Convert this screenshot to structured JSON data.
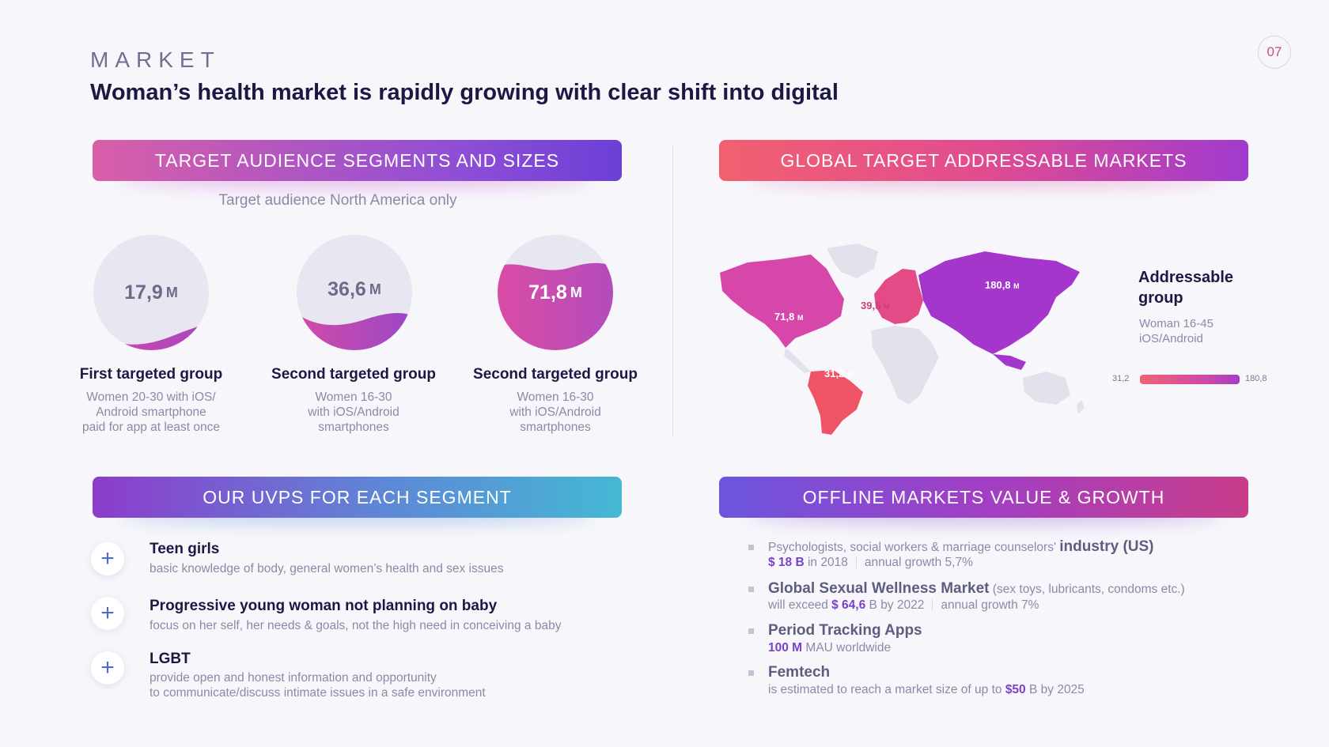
{
  "header": {
    "section_label": "MARKET",
    "title": "Woman’s health market is rapidly growing with clear shift into digital",
    "page_number": "07"
  },
  "target_audience": {
    "banner": "TARGET AUDIENCE SEGMENTS AND SIZES",
    "subtitle": "Target audience North America only",
    "segments": [
      {
        "value": "17,9",
        "unit": "M",
        "fill_fraction": 0.12,
        "title": "First targeted group",
        "desc": [
          "Women 20-30 with iOS/",
          "Android smartphone",
          "paid for app at least once"
        ]
      },
      {
        "value": "36,6",
        "unit": "M",
        "fill_fraction": 0.3,
        "title": "Second targeted group",
        "desc": [
          "Women 16-30",
          "with iOS/Android",
          "smartphones"
        ]
      },
      {
        "value": "71,8",
        "unit": "M",
        "fill_fraction": 0.75,
        "title": "Second targeted group",
        "desc": [
          "Women 16-30",
          "with iOS/Android",
          "smartphones"
        ]
      }
    ]
  },
  "global_markets": {
    "banner": "GLOBAL TARGET ADDRESSABLE MARKETS",
    "regions": [
      {
        "name": "north-america",
        "value": "71,8",
        "unit": "M"
      },
      {
        "name": "europe",
        "value": "39,5",
        "unit": "M"
      },
      {
        "name": "asia",
        "value": "180,8",
        "unit": "M"
      },
      {
        "name": "south-america",
        "value": "31,2",
        "unit": "M"
      }
    ],
    "legend": {
      "title_line1": "Addressable",
      "title_line2": "group",
      "sub_line1": "Woman 16-45",
      "sub_line2": "iOS/Android",
      "min": "31,2",
      "max": "180,8"
    }
  },
  "uvps": {
    "banner": "OUR UVPS FOR EACH SEGMENT",
    "items": [
      {
        "title": "Teen girls",
        "desc": [
          "basic knowledge of body, general women’s health and sex issues"
        ]
      },
      {
        "title": "Progressive young woman not planning on baby",
        "desc": [
          "focus on her self, her needs & goals, not the high need in conceiving a baby"
        ]
      },
      {
        "title": "LGBT",
        "desc": [
          "provide open and honest information and opportunity",
          "to communicate/discuss intimate issues in a safe environment"
        ]
      }
    ]
  },
  "offline": {
    "banner": "OFFLINE MARKETS VALUE & GROWTH",
    "items": [
      {
        "l1_pre": "Psychologists, social workers & marriage counselors'",
        "l1_strong": "industry (US)",
        "l1_post": "",
        "l2_acc": "$ 18 B",
        "l2_text": "in 2018",
        "l2_growth": "annual growth 5,7%"
      },
      {
        "l1_pre": "",
        "l1_strong": "Global Sexual Wellness Market",
        "l1_post": "(sex toys, lubricants, condoms etc.)",
        "l2_pre": "will exceed",
        "l2_acc": "$ 64,6",
        "l2_text": "B by 2022",
        "l2_growth": "annual growth 7%"
      },
      {
        "l1_strong": "Period Tracking Apps",
        "l2_acc": "100 M",
        "l2_text": "MAU worldwide"
      },
      {
        "l1_strong": "Femtech",
        "l2_pre": "is estimated to reach a market size of up to",
        "l2_acc": "$50",
        "l2_text": "B by 2025"
      }
    ]
  },
  "colors": {
    "accent": "#7a40c8",
    "pink": "#d44aa2",
    "map_base": "#e2e1ec",
    "map_asia": "#a436cc",
    "map_na": "#d647a9",
    "map_eu": "#e34a86",
    "map_sa": "#ef5466"
  }
}
